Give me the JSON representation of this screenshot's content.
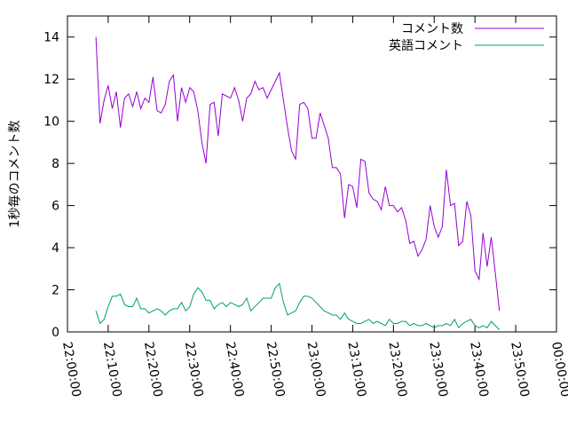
{
  "chart_data": {
    "type": "line",
    "title": "",
    "xlabel": "",
    "ylabel": "1秒毎のコメント数",
    "xlim_minutes": [
      0,
      120
    ],
    "ylim": [
      0,
      15
    ],
    "x_ticks": [
      {
        "minute": 0,
        "label": "22:00:00"
      },
      {
        "minute": 10,
        "label": "22:10:00"
      },
      {
        "minute": 20,
        "label": "22:20:00"
      },
      {
        "minute": 30,
        "label": "22:30:00"
      },
      {
        "minute": 40,
        "label": "22:40:00"
      },
      {
        "minute": 50,
        "label": "22:50:00"
      },
      {
        "minute": 60,
        "label": "23:00:00"
      },
      {
        "minute": 70,
        "label": "23:10:00"
      },
      {
        "minute": 80,
        "label": "23:20:00"
      },
      {
        "minute": 90,
        "label": "23:30:00"
      },
      {
        "minute": 100,
        "label": "23:40:00"
      },
      {
        "minute": 110,
        "label": "23:50:00"
      },
      {
        "minute": 120,
        "label": "00:00:00"
      }
    ],
    "y_ticks": [
      0,
      2,
      4,
      6,
      8,
      10,
      12,
      14
    ],
    "legend_position": "top-right",
    "series": [
      {
        "name": "コメント数",
        "color": "#9400d3",
        "points": [
          [
            7,
            14.0
          ],
          [
            8,
            9.9
          ],
          [
            9,
            11.0
          ],
          [
            10,
            11.7
          ],
          [
            11,
            10.6
          ],
          [
            12,
            11.4
          ],
          [
            13,
            9.7
          ],
          [
            14,
            11.1
          ],
          [
            15,
            11.3
          ],
          [
            16,
            10.7
          ],
          [
            17,
            11.4
          ],
          [
            18,
            10.6
          ],
          [
            19,
            11.1
          ],
          [
            20,
            10.9
          ],
          [
            21,
            12.1
          ],
          [
            22,
            10.5
          ],
          [
            23,
            10.4
          ],
          [
            24,
            10.8
          ],
          [
            25,
            11.9
          ],
          [
            26,
            12.2
          ],
          [
            27,
            10.0
          ],
          [
            28,
            11.6
          ],
          [
            29,
            10.9
          ],
          [
            30,
            11.6
          ],
          [
            31,
            11.4
          ],
          [
            32,
            10.5
          ],
          [
            33,
            9.0
          ],
          [
            34,
            8.0
          ],
          [
            35,
            10.8
          ],
          [
            36,
            10.9
          ],
          [
            37,
            9.3
          ],
          [
            38,
            11.3
          ],
          [
            39,
            11.2
          ],
          [
            40,
            11.1
          ],
          [
            41,
            11.6
          ],
          [
            42,
            11.0
          ],
          [
            43,
            10.0
          ],
          [
            44,
            11.1
          ],
          [
            45,
            11.3
          ],
          [
            46,
            11.9
          ],
          [
            47,
            11.5
          ],
          [
            48,
            11.6
          ],
          [
            49,
            11.1
          ],
          [
            50,
            11.5
          ],
          [
            51,
            11.9
          ],
          [
            52,
            12.3
          ],
          [
            53,
            11.0
          ],
          [
            54,
            9.7
          ],
          [
            55,
            8.6
          ],
          [
            56,
            8.2
          ],
          [
            57,
            10.8
          ],
          [
            58,
            10.9
          ],
          [
            59,
            10.6
          ],
          [
            60,
            9.2
          ],
          [
            61,
            9.2
          ],
          [
            62,
            10.4
          ],
          [
            63,
            9.8
          ],
          [
            64,
            9.2
          ],
          [
            65,
            7.8
          ],
          [
            66,
            7.8
          ],
          [
            67,
            7.5
          ],
          [
            68,
            5.4
          ],
          [
            69,
            7.0
          ],
          [
            70,
            6.9
          ],
          [
            71,
            5.9
          ],
          [
            72,
            8.2
          ],
          [
            73,
            8.1
          ],
          [
            74,
            6.6
          ],
          [
            75,
            6.3
          ],
          [
            76,
            6.2
          ],
          [
            77,
            5.8
          ],
          [
            78,
            6.9
          ],
          [
            79,
            6.0
          ],
          [
            80,
            6.0
          ],
          [
            81,
            5.7
          ],
          [
            82,
            5.9
          ],
          [
            83,
            5.3
          ],
          [
            84,
            4.2
          ],
          [
            85,
            4.3
          ],
          [
            86,
            3.6
          ],
          [
            87,
            3.9
          ],
          [
            88,
            4.4
          ],
          [
            89,
            6.0
          ],
          [
            90,
            5.0
          ],
          [
            91,
            4.5
          ],
          [
            92,
            5.0
          ],
          [
            93,
            7.7
          ],
          [
            94,
            6.0
          ],
          [
            95,
            6.1
          ],
          [
            96,
            4.1
          ],
          [
            97,
            4.3
          ],
          [
            98,
            6.2
          ],
          [
            99,
            5.5
          ],
          [
            100,
            2.9
          ],
          [
            101,
            2.5
          ],
          [
            102,
            4.7
          ],
          [
            103,
            3.1
          ],
          [
            104,
            4.5
          ],
          [
            105,
            2.8
          ],
          [
            106,
            1.0
          ]
        ]
      },
      {
        "name": "英語コメント",
        "color": "#009e73",
        "points": [
          [
            7,
            1.0
          ],
          [
            8,
            0.4
          ],
          [
            9,
            0.6
          ],
          [
            10,
            1.2
          ],
          [
            11,
            1.7
          ],
          [
            12,
            1.7
          ],
          [
            13,
            1.8
          ],
          [
            14,
            1.3
          ],
          [
            15,
            1.2
          ],
          [
            16,
            1.2
          ],
          [
            17,
            1.6
          ],
          [
            18,
            1.1
          ],
          [
            19,
            1.1
          ],
          [
            20,
            0.9
          ],
          [
            21,
            1.0
          ],
          [
            22,
            1.1
          ],
          [
            23,
            1.0
          ],
          [
            24,
            0.8
          ],
          [
            25,
            1.0
          ],
          [
            26,
            1.1
          ],
          [
            27,
            1.1
          ],
          [
            28,
            1.4
          ],
          [
            29,
            1.0
          ],
          [
            30,
            1.2
          ],
          [
            31,
            1.8
          ],
          [
            32,
            2.1
          ],
          [
            33,
            1.9
          ],
          [
            34,
            1.5
          ],
          [
            35,
            1.5
          ],
          [
            36,
            1.1
          ],
          [
            37,
            1.3
          ],
          [
            38,
            1.4
          ],
          [
            39,
            1.2
          ],
          [
            40,
            1.4
          ],
          [
            41,
            1.3
          ],
          [
            42,
            1.2
          ],
          [
            43,
            1.3
          ],
          [
            44,
            1.6
          ],
          [
            45,
            1.0
          ],
          [
            46,
            1.2
          ],
          [
            47,
            1.4
          ],
          [
            48,
            1.6
          ],
          [
            49,
            1.6
          ],
          [
            50,
            1.6
          ],
          [
            51,
            2.1
          ],
          [
            52,
            2.3
          ],
          [
            53,
            1.4
          ],
          [
            54,
            0.8
          ],
          [
            55,
            0.9
          ],
          [
            56,
            1.0
          ],
          [
            57,
            1.4
          ],
          [
            58,
            1.7
          ],
          [
            59,
            1.7
          ],
          [
            60,
            1.6
          ],
          [
            61,
            1.4
          ],
          [
            62,
            1.2
          ],
          [
            63,
            1.0
          ],
          [
            64,
            0.9
          ],
          [
            65,
            0.8
          ],
          [
            66,
            0.8
          ],
          [
            67,
            0.6
          ],
          [
            68,
            0.9
          ],
          [
            69,
            0.6
          ],
          [
            70,
            0.5
          ],
          [
            71,
            0.4
          ],
          [
            72,
            0.4
          ],
          [
            73,
            0.5
          ],
          [
            74,
            0.6
          ],
          [
            75,
            0.4
          ],
          [
            76,
            0.5
          ],
          [
            77,
            0.4
          ],
          [
            78,
            0.3
          ],
          [
            79,
            0.6
          ],
          [
            80,
            0.4
          ],
          [
            81,
            0.4
          ],
          [
            82,
            0.5
          ],
          [
            83,
            0.5
          ],
          [
            84,
            0.3
          ],
          [
            85,
            0.4
          ],
          [
            86,
            0.3
          ],
          [
            87,
            0.3
          ],
          [
            88,
            0.4
          ],
          [
            89,
            0.3
          ],
          [
            90,
            0.2
          ],
          [
            91,
            0.3
          ],
          [
            92,
            0.3
          ],
          [
            93,
            0.4
          ],
          [
            94,
            0.3
          ],
          [
            95,
            0.6
          ],
          [
            96,
            0.2
          ],
          [
            97,
            0.4
          ],
          [
            98,
            0.5
          ],
          [
            99,
            0.6
          ],
          [
            100,
            0.3
          ],
          [
            101,
            0.2
          ],
          [
            102,
            0.3
          ],
          [
            103,
            0.2
          ],
          [
            104,
            0.5
          ],
          [
            105,
            0.3
          ],
          [
            106,
            0.1
          ]
        ]
      }
    ]
  }
}
